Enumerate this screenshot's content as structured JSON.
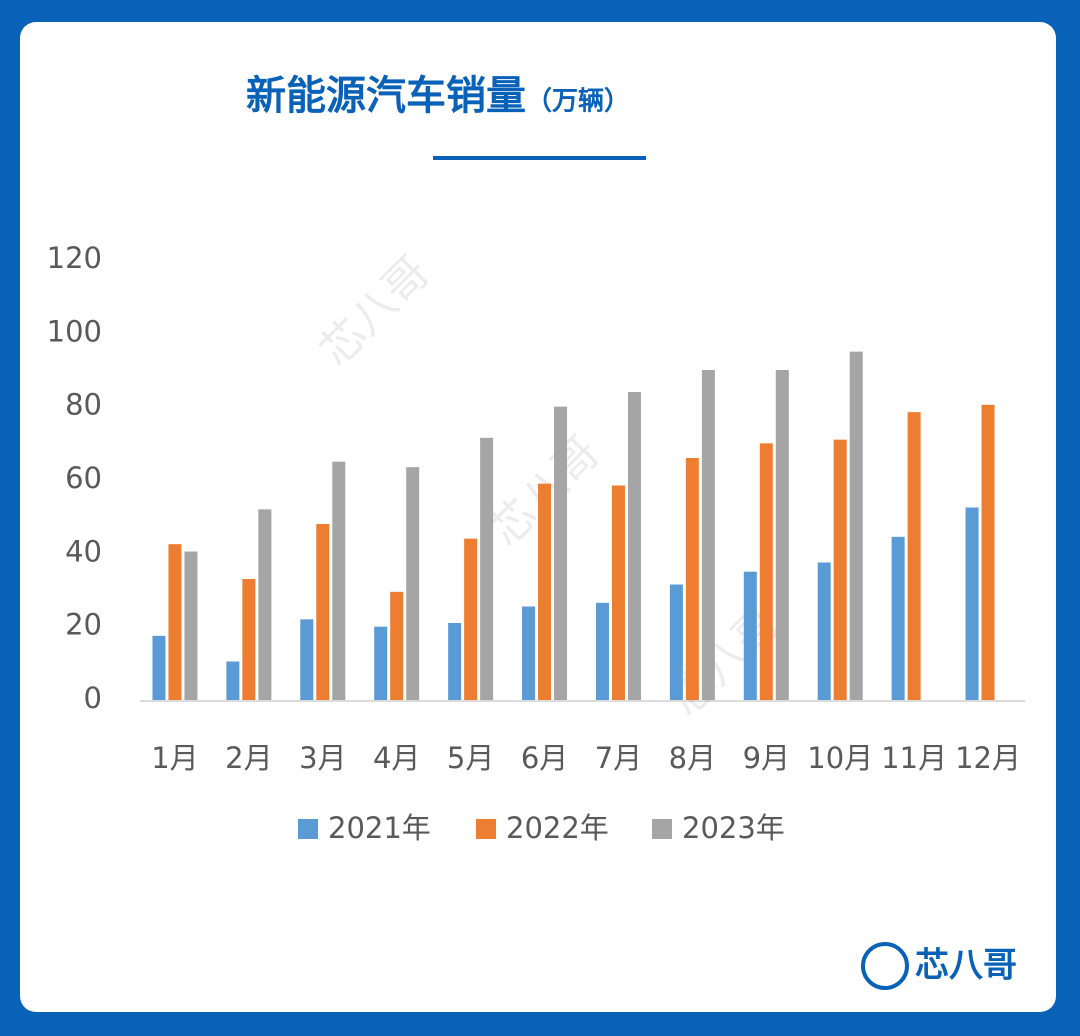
{
  "chart_data": {
    "type": "bar",
    "title": "新能源汽车销量",
    "unit": "（万辆）",
    "categories": [
      "1月",
      "2月",
      "3月",
      "4月",
      "5月",
      "6月",
      "7月",
      "8月",
      "9月",
      "10月",
      "11月",
      "12月"
    ],
    "series": [
      {
        "name": "2021年",
        "color": "#5b9bd5",
        "values": [
          17.5,
          10.5,
          22,
          20,
          21,
          25.5,
          26.5,
          31.5,
          35,
          37.5,
          44.5,
          52.5
        ]
      },
      {
        "name": "2022年",
        "color": "#ed7d31",
        "values": [
          42.5,
          33,
          48,
          29.5,
          44,
          59,
          58.5,
          66,
          70,
          71,
          78.5,
          80.5
        ]
      },
      {
        "name": "2023年",
        "color": "#a5a5a5",
        "values": [
          40.5,
          52,
          65,
          63.5,
          71.5,
          80,
          84,
          90,
          90,
          95,
          null,
          null
        ]
      }
    ],
    "ylim": [
      0,
      120
    ],
    "yticks": [
      0,
      20,
      40,
      60,
      80,
      100,
      120
    ],
    "grid": false,
    "brand": "芯八哥"
  }
}
